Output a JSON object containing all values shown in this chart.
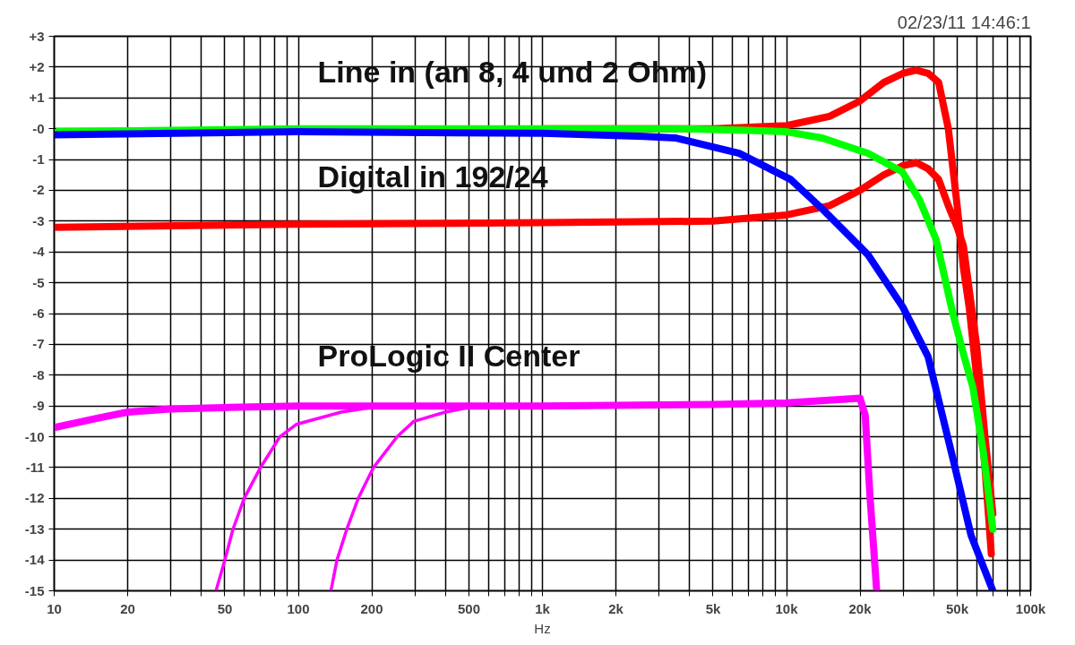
{
  "chart_data": {
    "type": "line",
    "xlabel": "Hz",
    "log": "x",
    "xlim": [
      10,
      100000
    ],
    "ylim": [
      -15,
      3
    ],
    "xticks": [
      10,
      20,
      {
        "value": 30,
        "label": null
      },
      {
        "value": 40,
        "label": null
      },
      50,
      {
        "value": 60,
        "label": null
      },
      {
        "value": 70,
        "label": null
      },
      {
        "value": 80,
        "label": null
      },
      {
        "value": 90,
        "label": null
      },
      100,
      200,
      {
        "value": 300,
        "label": null
      },
      {
        "value": 400,
        "label": null
      },
      500,
      {
        "value": 600,
        "label": null
      },
      {
        "value": 700,
        "label": null
      },
      {
        "value": 800,
        "label": null
      },
      {
        "value": 900,
        "label": null
      },
      {
        "value": 1000,
        "label": "1k"
      },
      {
        "value": 2000,
        "label": "2k"
      },
      {
        "value": 3000,
        "label": null
      },
      {
        "value": 4000,
        "label": null
      },
      {
        "value": 5000,
        "label": "5k"
      },
      {
        "value": 6000,
        "label": null
      },
      {
        "value": 7000,
        "label": null
      },
      {
        "value": 8000,
        "label": null
      },
      {
        "value": 9000,
        "label": null
      },
      {
        "value": 10000,
        "label": "10k"
      },
      {
        "value": 20000,
        "label": "20k"
      },
      {
        "value": 30000,
        "label": null
      },
      {
        "value": 40000,
        "label": null
      },
      {
        "value": 50000,
        "label": "50k"
      },
      {
        "value": 60000,
        "label": null
      },
      {
        "value": 70000,
        "label": null
      },
      {
        "value": 80000,
        "label": null
      },
      {
        "value": 90000,
        "label": null
      },
      {
        "value": 100000,
        "label": "100k"
      }
    ],
    "yticks": [
      {
        "value": 3,
        "label": "+3"
      },
      {
        "value": 2,
        "label": "+2"
      },
      {
        "value": 1,
        "label": "+1"
      },
      {
        "value": 0,
        "label": "-0"
      },
      -1,
      -2,
      -3,
      -4,
      -5,
      -6,
      -7,
      -8,
      -9,
      -10,
      -11,
      -12,
      -13,
      -14,
      -15
    ],
    "grid": true,
    "line_style": "solid",
    "series": [
      {
        "color": "#ff0000",
        "x": [
          1000,
          5000,
          10000,
          15000,
          20000,
          25000,
          30000,
          34000,
          38000,
          42000,
          46000,
          50000,
          53000,
          56000,
          60000,
          65000,
          69000
        ],
        "values": [
          0,
          0,
          0.1,
          0.4,
          0.9,
          1.5,
          1.8,
          1.9,
          1.8,
          1.5,
          0,
          -2.5,
          -4.5,
          -5.8,
          -8,
          -11,
          -13.8
        ]
      },
      {
        "color": "#ff0000",
        "x": [
          10,
          100,
          1000,
          5000,
          10000,
          15000,
          20000,
          25000,
          30000,
          34000,
          38000,
          42000,
          46000,
          50000,
          53000,
          60000,
          65000,
          70000
        ],
        "values": [
          -3.2,
          -3.1,
          -3.05,
          -3.0,
          -2.8,
          -2.5,
          -2.0,
          -1.5,
          -1.2,
          -1.1,
          -1.3,
          -1.65,
          -2.5,
          -3.2,
          -3.8,
          -7,
          -10,
          -12.5
        ]
      },
      {
        "color": "#00ff00",
        "x": [
          10,
          100,
          1000,
          3500,
          7000,
          10000,
          14000,
          21600,
          29800,
          35000,
          41000,
          48000,
          53000,
          58000,
          64000,
          70000
        ],
        "values": [
          -0.1,
          0,
          0,
          0,
          -0.05,
          -0.1,
          -0.3,
          -0.8,
          -1.4,
          -2.3,
          -3.6,
          -6,
          -7.3,
          -8.4,
          -10.5,
          -13
        ]
      },
      {
        "color": "#0000ff",
        "x": [
          10,
          100,
          1000,
          2600,
          3500,
          6400,
          10400,
          14000,
          21600,
          30000,
          38000,
          48000,
          57000,
          70000
        ],
        "values": [
          -0.2,
          -0.1,
          -0.15,
          -0.25,
          -0.3,
          -0.8,
          -1.65,
          -2.6,
          -4.1,
          -5.8,
          -7.4,
          -10.7,
          -13.2,
          -15
        ]
      },
      {
        "color": "#ff00ff",
        "x": [
          10,
          15,
          20,
          30,
          50,
          100,
          1000,
          5000,
          10000,
          20000,
          21000,
          22000,
          23400
        ],
        "values": [
          -9.7,
          -9.4,
          -9.2,
          -9.1,
          -9.05,
          -9.0,
          -9.0,
          -8.95,
          -8.9,
          -8.75,
          -9.3,
          -12,
          -15
        ]
      },
      {
        "color": "#ff00ff",
        "x": [
          46,
          50,
          54,
          60,
          70,
          84,
          98,
          150,
          200,
          300
        ],
        "values": [
          -15,
          -14,
          -13,
          -12,
          -11,
          -10,
          -9.6,
          -9.2,
          -9.05,
          -9.0
        ]
      },
      {
        "color": "#ff00ff",
        "x": [
          136,
          144,
          158,
          176,
          203,
          254,
          297,
          400,
          500,
          1000
        ],
        "values": [
          -15,
          -14,
          -13,
          -12,
          -11,
          -10,
          -9.5,
          -9.2,
          -9.05,
          -9.0
        ]
      }
    ],
    "annotations": [
      "Line in  (an 8, 4 und 2 Ohm)",
      "Digital in 192/24",
      "ProLogic II Center",
      "02/23/11 14:46:1"
    ]
  }
}
